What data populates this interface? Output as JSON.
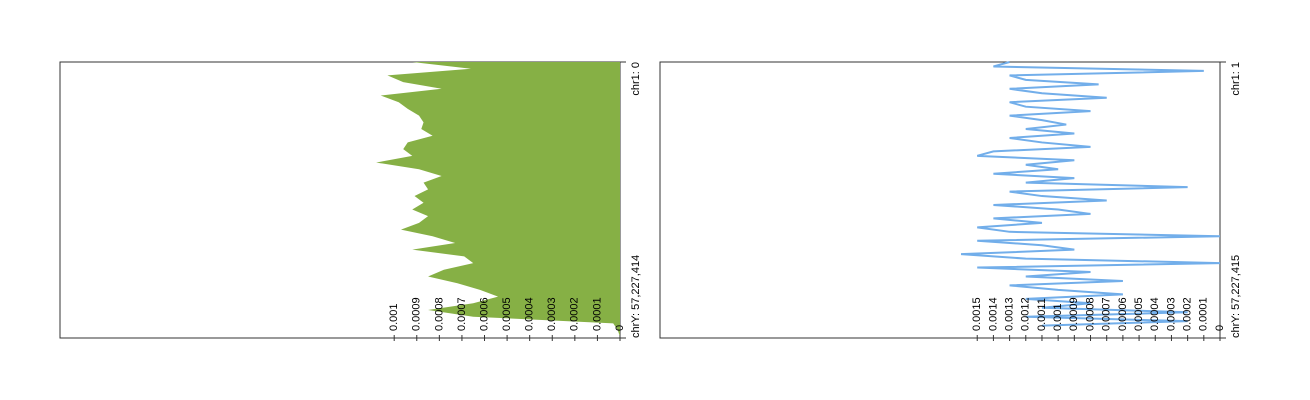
{
  "chart_data": [
    {
      "type": "area",
      "color": "#86b045",
      "xlim": [
        0,
        3088269832
      ],
      "xticks": [
        {
          "value": 0,
          "label": "chr1: 0"
        },
        {
          "value": 3088269832,
          "label": "chrY: 57,227,414"
        }
      ],
      "ylim": [
        0,
        0.00248
      ],
      "yticks": [
        0,
        0.0001,
        0.0002,
        0.0003,
        0.0004,
        0.0005,
        0.0006,
        0.0007,
        0.0008,
        0.0009,
        0.001
      ],
      "x": [
        0,
        75000000,
        150000000,
        225000000,
        300000000,
        375000000,
        450000000,
        525000000,
        600000000,
        675000000,
        750000000,
        825000000,
        900000000,
        975000000,
        1050000000,
        1125000000,
        1200000000,
        1275000000,
        1350000000,
        1425000000,
        1500000000,
        1575000000,
        1650000000,
        1725000000,
        1800000000,
        1875000000,
        1950000000,
        2025000000,
        2100000000,
        2175000000,
        2250000000,
        2325000000,
        2400000000,
        2475000000,
        2550000000,
        2625000000,
        2700000000,
        2775000000,
        2850000000,
        2925000000,
        3000000000,
        3075000000
      ],
      "values": [
        0.00092,
        0.00066,
        0.00103,
        0.00096,
        0.00079,
        0.00106,
        0.00098,
        0.00094,
        0.00089,
        0.00087,
        0.00088,
        0.00083,
        0.00094,
        0.00096,
        0.00092,
        0.00108,
        0.00089,
        0.00079,
        0.00087,
        0.00085,
        0.00091,
        0.00087,
        0.00092,
        0.00085,
        0.00089,
        0.00097,
        0.00083,
        0.00073,
        0.00092,
        0.00069,
        0.00065,
        0.00078,
        0.00085,
        0.00072,
        0.00062,
        0.00054,
        0.00065,
        0.00085,
        0.00065,
        3e-05,
        1e-05,
        0
      ]
    },
    {
      "type": "line",
      "color": "#72aeea",
      "xlim": [
        0,
        3088269832
      ],
      "xticks": [
        {
          "value": 0,
          "label": "chr1: 1"
        },
        {
          "value": 3088269832,
          "label": "chrY: 57,227,415"
        }
      ],
      "ylim": [
        0,
        0.00346
      ],
      "yticks": [
        0,
        0.0001,
        0.0002,
        0.0003,
        0.0004,
        0.0005,
        0.0006,
        0.0007,
        0.0008,
        0.0009,
        0.001,
        0.0011,
        0.0012,
        0.0013,
        0.0014,
        0.0015
      ],
      "x": [
        0,
        50000000,
        100000000,
        150000000,
        200000000,
        250000000,
        300000000,
        350000000,
        400000000,
        450000000,
        500000000,
        550000000,
        600000000,
        650000000,
        700000000,
        750000000,
        800000000,
        850000000,
        900000000,
        950000000,
        1000000000,
        1050000000,
        1100000000,
        1150000000,
        1200000000,
        1250000000,
        1300000000,
        1350000000,
        1400000000,
        1450000000,
        1500000000,
        1550000000,
        1600000000,
        1650000000,
        1700000000,
        1750000000,
        1800000000,
        1850000000,
        1900000000,
        1950000000,
        2000000000,
        2050000000,
        2100000000,
        2150000000,
        2200000000,
        2250000000,
        2300000000,
        2350000000,
        2400000000,
        2450000000,
        2500000000,
        2550000000,
        2600000000,
        2650000000,
        2700000000,
        2750000000,
        2800000000,
        2850000000,
        2900000000,
        2950000000
      ],
      "values": [
        0.0013,
        0.0014,
        0.0001,
        0.0013,
        0.0012,
        0.00075,
        0.0013,
        0.0011,
        0.0007,
        0.0013,
        0.0012,
        0.0008,
        0.0013,
        0.0011,
        0.00095,
        0.0012,
        0.0009,
        0.0013,
        0.0011,
        0.0008,
        0.0014,
        0.0015,
        0.0009,
        0.0012,
        0.001,
        0.0014,
        0.0009,
        0.0012,
        0.0002,
        0.0013,
        0.0011,
        0.0007,
        0.0014,
        0.001,
        0.0008,
        0.0014,
        0.0011,
        0.0015,
        0.0013,
        0,
        0.0015,
        0.0011,
        0.0009,
        0.0016,
        0.0012,
        0,
        0.0015,
        0.0008,
        0.0012,
        0.0006,
        0.0013,
        0.001,
        0.0006,
        0.0012,
        0.0008,
        0.0011,
        0.0002,
        0.0012,
        0.0002,
        0.0011
      ]
    }
  ]
}
